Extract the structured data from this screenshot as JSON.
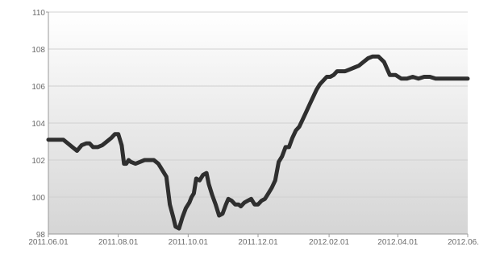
{
  "chart_data": {
    "type": "line",
    "title": "",
    "xlabel": "",
    "ylabel": "",
    "ylim": [
      98,
      110
    ],
    "yticks": [
      98,
      100,
      102,
      104,
      106,
      108,
      110
    ],
    "ytick_labels": [
      "98",
      "100",
      "102",
      "104",
      "106",
      "108",
      "110"
    ],
    "xlim": [
      "2011-06-01",
      "2012-06-01"
    ],
    "xticks": [
      "2011-06-01",
      "2011-08-01",
      "2011-10-01",
      "2011-12-01",
      "2012-02-01",
      "2012-04-01",
      "2012-06-01"
    ],
    "xtick_labels": [
      "2011.06.01",
      "2011.08.01",
      "2011.10.01",
      "2011.12.01",
      "2012.02.01",
      "2012.04.01",
      "2012.06."
    ],
    "grid": true,
    "background_gradient": [
      "#ffffff",
      "#d5d5d5"
    ],
    "colors": {
      "line": "#2f2f2f",
      "grid": "#d0d0d0",
      "axis": "#999999",
      "tick_text": "#6b6b6b"
    },
    "series": [
      {
        "x": [
          "2011-06-01",
          "2011-06-05",
          "2011-06-10",
          "2011-06-14",
          "2011-06-18",
          "2011-06-22",
          "2011-06-26",
          "2011-06-30",
          "2011-07-04",
          "2011-07-07",
          "2011-07-10",
          "2011-07-14",
          "2011-07-18",
          "2011-07-22",
          "2011-07-26",
          "2011-07-29",
          "2011-08-01",
          "2011-08-04",
          "2011-08-06",
          "2011-08-08",
          "2011-08-10",
          "2011-08-12",
          "2011-08-16",
          "2011-08-20",
          "2011-08-24",
          "2011-08-28",
          "2011-09-01",
          "2011-09-05",
          "2011-09-09",
          "2011-09-12",
          "2011-09-15",
          "2011-09-18",
          "2011-09-20",
          "2011-09-23",
          "2011-09-26",
          "2011-09-29",
          "2011-10-02",
          "2011-10-04",
          "2011-10-06",
          "2011-10-08",
          "2011-10-11",
          "2011-10-14",
          "2011-10-17",
          "2011-10-19",
          "2011-10-22",
          "2011-10-25",
          "2011-10-28",
          "2011-10-31",
          "2011-11-03",
          "2011-11-05",
          "2011-11-08",
          "2011-11-11",
          "2011-11-14",
          "2011-11-16",
          "2011-11-19",
          "2011-11-22",
          "2011-11-25",
          "2011-11-28",
          "2011-12-01",
          "2011-12-04",
          "2011-12-07",
          "2011-12-10",
          "2011-12-13",
          "2011-12-16",
          "2011-12-19",
          "2011-12-22",
          "2011-12-25",
          "2011-12-28",
          "2011-12-31",
          "2012-01-03",
          "2012-01-06",
          "2012-01-09",
          "2012-01-12",
          "2012-01-15",
          "2012-01-18",
          "2012-01-21",
          "2012-01-24",
          "2012-01-27",
          "2012-01-30",
          "2012-02-02",
          "2012-02-05",
          "2012-02-08",
          "2012-02-11",
          "2012-02-15",
          "2012-02-19",
          "2012-02-23",
          "2012-02-27",
          "2012-03-02",
          "2012-03-06",
          "2012-03-10",
          "2012-03-15",
          "2012-03-20",
          "2012-03-25",
          "2012-03-30",
          "2012-04-04",
          "2012-04-09",
          "2012-04-14",
          "2012-04-19",
          "2012-04-24",
          "2012-04-29",
          "2012-05-04",
          "2012-05-09",
          "2012-05-13",
          "2012-05-16",
          "2012-05-19",
          "2012-05-22",
          "2012-05-25",
          "2012-05-28",
          "2012-06-01"
        ],
        "values": [
          103.1,
          103.1,
          103.1,
          103.1,
          102.9,
          102.7,
          102.5,
          102.8,
          102.9,
          102.9,
          102.7,
          102.7,
          102.8,
          103.0,
          103.2,
          103.4,
          103.4,
          102.8,
          101.8,
          101.8,
          102.0,
          101.9,
          101.8,
          101.9,
          102.0,
          102.0,
          102.0,
          101.8,
          101.4,
          101.1,
          99.6,
          98.9,
          98.4,
          98.3,
          98.9,
          99.4,
          99.7,
          100.0,
          100.2,
          101.0,
          100.9,
          101.2,
          101.3,
          100.7,
          100.1,
          99.6,
          99.0,
          99.1,
          99.6,
          99.9,
          99.8,
          99.6,
          99.6,
          99.5,
          99.7,
          99.8,
          99.9,
          99.6,
          99.6,
          99.8,
          99.9,
          100.2,
          100.5,
          100.9,
          101.9,
          102.2,
          102.7,
          102.7,
          103.2,
          103.6,
          103.8,
          104.2,
          104.6,
          105.0,
          105.4,
          105.8,
          106.1,
          106.3,
          106.5,
          106.5,
          106.6,
          106.8,
          106.8,
          106.8,
          106.9,
          107.0,
          107.1,
          107.3,
          107.5,
          107.6,
          107.6,
          107.3,
          106.6,
          106.6,
          106.4,
          106.4,
          106.5,
          106.4,
          106.5,
          106.5,
          106.4,
          106.4,
          106.4,
          106.4,
          106.4,
          106.4,
          106.4,
          106.4,
          106.4
        ]
      }
    ]
  }
}
